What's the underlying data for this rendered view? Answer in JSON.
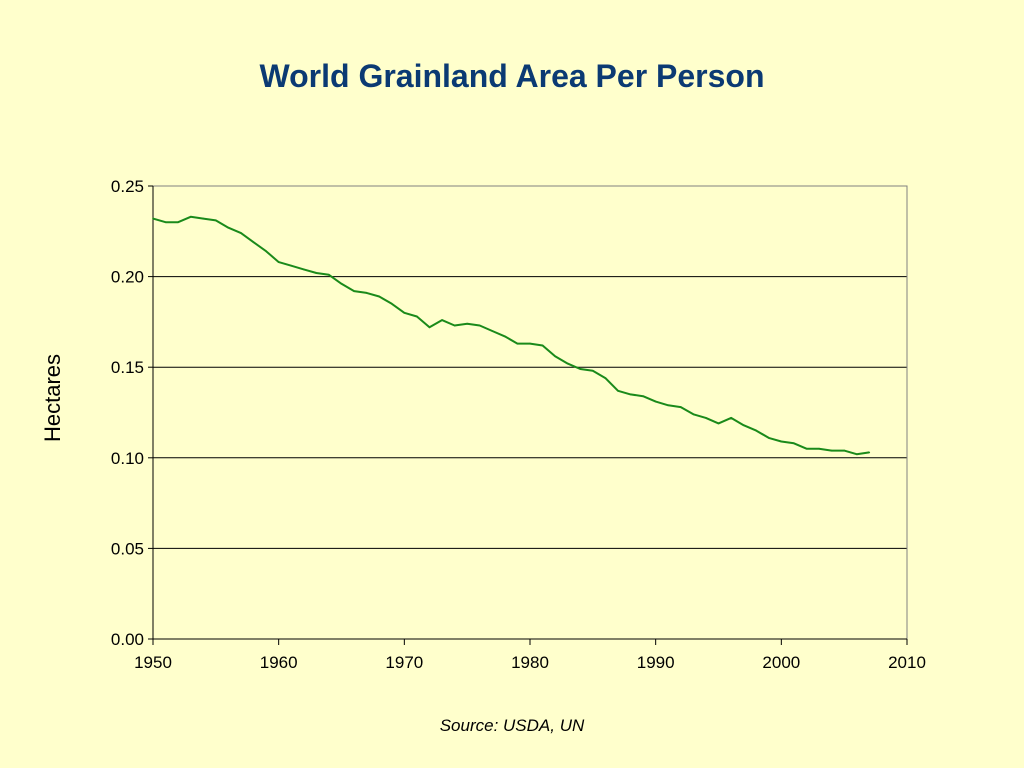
{
  "title": "World Grainland Area Per Person",
  "source": "Source: USDA, UN",
  "chart_data": {
    "type": "line",
    "title": "World Grainland Area Per Person",
    "xlabel": "",
    "ylabel": "Hectares",
    "xlim": [
      1950,
      2010
    ],
    "ylim": [
      0,
      0.25
    ],
    "x_ticks": [
      "1950",
      "1960",
      "1970",
      "1980",
      "1990",
      "2000",
      "2010"
    ],
    "y_ticks": [
      "0.00",
      "0.05",
      "0.10",
      "0.15",
      "0.20",
      "0.25"
    ],
    "grid": "horizontal",
    "line_color": "#1A8A1A",
    "x": [
      1950,
      1951,
      1952,
      1953,
      1954,
      1955,
      1956,
      1957,
      1958,
      1959,
      1960,
      1961,
      1962,
      1963,
      1964,
      1965,
      1966,
      1967,
      1968,
      1969,
      1970,
      1971,
      1972,
      1973,
      1974,
      1975,
      1976,
      1977,
      1978,
      1979,
      1980,
      1981,
      1982,
      1983,
      1984,
      1985,
      1986,
      1987,
      1988,
      1989,
      1990,
      1991,
      1992,
      1993,
      1994,
      1995,
      1996,
      1997,
      1998,
      1999,
      2000,
      2001,
      2002,
      2003,
      2004,
      2005,
      2006,
      2007
    ],
    "series": [
      {
        "values": [
          0.232,
          0.23,
          0.23,
          0.233,
          0.232,
          0.231,
          0.227,
          0.224,
          0.219,
          0.214,
          0.208,
          0.206,
          0.204,
          0.202,
          0.201,
          0.196,
          0.192,
          0.191,
          0.189,
          0.185,
          0.18,
          0.178,
          0.172,
          0.176,
          0.173,
          0.174,
          0.173,
          0.17,
          0.167,
          0.163,
          0.163,
          0.162,
          0.156,
          0.152,
          0.149,
          0.148,
          0.144,
          0.137,
          0.135,
          0.134,
          0.131,
          0.129,
          0.128,
          0.124,
          0.122,
          0.119,
          0.122,
          0.118,
          0.115,
          0.111,
          0.109,
          0.108,
          0.105,
          0.105,
          0.104,
          0.104,
          0.102,
          0.103
        ]
      }
    ]
  }
}
